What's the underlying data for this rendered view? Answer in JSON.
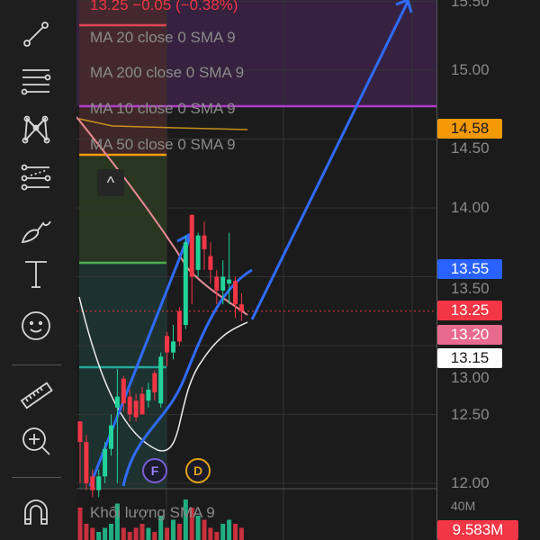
{
  "toolbar": {
    "items": [
      {
        "icon": "trend-line-icon"
      },
      {
        "icon": "horizontal-lines-icon"
      },
      {
        "icon": "pattern-icon"
      },
      {
        "icon": "fib-channel-icon"
      },
      {
        "icon": "brush-icon"
      },
      {
        "icon": "text-icon"
      },
      {
        "icon": "emoji-icon"
      },
      {
        "icon": "ruler-icon"
      },
      {
        "icon": "zoom-in-icon"
      },
      {
        "icon": "magnet-icon"
      }
    ]
  },
  "header": {
    "price_change": "13.25  −0.05 (−0.38%)"
  },
  "indicators": [
    "MA 20 close 0 SMA 9",
    "MA 200 close 0 SMA 9",
    "MA 10 close 0 SMA 9",
    "MA 50 close 0 SMA 9"
  ],
  "volume_label": "Khối lượng SMA 9",
  "collapse_label": "^",
  "markers": [
    {
      "label": "F",
      "color": "#7a5cd6"
    },
    {
      "label": "D",
      "color": "#e2a316"
    }
  ],
  "axis": {
    "ticks": [
      {
        "label": "15.50",
        "value": 15.5
      },
      {
        "label": "15.00",
        "value": 15.0
      },
      {
        "label": "14.50",
        "value": 14.5
      },
      {
        "label": "14.00",
        "value": 14.0
      },
      {
        "label": "13.50",
        "value": 13.5
      },
      {
        "label": "13.00",
        "value": 13.0
      },
      {
        "label": "12.50",
        "value": 12.5
      },
      {
        "label": "12.00",
        "value": 12.0
      }
    ],
    "volume_tick": "40M",
    "badges": [
      {
        "label": "14.58",
        "value": 14.58,
        "bg": "#f59a07",
        "fg": "#1a1a1a"
      },
      {
        "label": "13.55",
        "value": 13.55,
        "bg": "#2962ff",
        "fg": "#ffffff"
      },
      {
        "label": "13.25",
        "value": 13.25,
        "bg": "#f23645",
        "fg": "#ffffff"
      },
      {
        "label": "13.20",
        "value": 13.2,
        "bg": "#e86a8f",
        "fg": "#ffffff"
      },
      {
        "label": "13.15",
        "value": 13.15,
        "bg": "#ffffff",
        "fg": "#1a1a1a"
      }
    ],
    "volume_badge": {
      "label": "9.583M",
      "bg": "#f23645",
      "fg": "#ffffff"
    }
  },
  "colors": {
    "up": "#22d39a",
    "down": "#f23645",
    "drawing": "#2f6bff"
  },
  "chart_data": {
    "type": "candlestick",
    "ylim": [
      12.0,
      15.5
    ],
    "candles": [
      [
        12.45,
        12.45,
        12.0,
        12.3
      ],
      [
        12.3,
        12.35,
        11.95,
        12.0
      ],
      [
        12.05,
        12.1,
        11.9,
        11.95
      ],
      [
        11.95,
        12.1,
        11.9,
        12.05
      ],
      [
        12.05,
        12.3,
        12.0,
        12.25
      ],
      [
        12.25,
        12.5,
        12.2,
        12.42
      ],
      [
        12.55,
        12.83,
        12.0,
        12.63
      ],
      [
        12.76,
        12.78,
        12.52,
        12.58
      ],
      [
        12.63,
        12.68,
        12.45,
        12.5
      ],
      [
        12.6,
        12.65,
        12.45,
        12.48
      ],
      [
        12.65,
        12.7,
        12.5,
        12.5
      ],
      [
        12.6,
        12.73,
        12.55,
        12.68
      ],
      [
        12.8,
        12.82,
        12.6,
        12.66
      ],
      [
        12.58,
        12.95,
        12.55,
        12.92
      ],
      [
        13.07,
        13.1,
        12.85,
        12.95
      ],
      [
        12.95,
        13.15,
        12.9,
        13.03
      ],
      [
        13.25,
        13.28,
        13.0,
        13.03
      ],
      [
        13.15,
        13.8,
        13.12,
        13.75
      ],
      [
        13.95,
        13.95,
        13.3,
        13.5
      ],
      [
        13.55,
        13.82,
        13.5,
        13.8
      ],
      [
        13.8,
        13.9,
        13.55,
        13.7
      ],
      [
        13.65,
        13.75,
        13.45,
        13.55
      ],
      [
        13.5,
        13.55,
        13.3,
        13.4
      ],
      [
        13.4,
        13.62,
        13.3,
        13.5
      ],
      [
        13.45,
        13.82,
        13.3,
        13.48
      ],
      [
        13.47,
        13.5,
        13.2,
        13.3
      ],
      [
        13.3,
        13.38,
        13.18,
        13.25
      ]
    ],
    "volume_up_down": [
      0,
      0,
      0,
      1,
      1,
      1,
      1,
      0,
      0,
      0,
      0,
      1,
      0,
      1,
      0,
      1,
      0,
      1,
      0,
      1,
      0,
      0,
      0,
      1,
      1,
      0,
      0
    ],
    "volume": [
      0.8,
      0.4,
      0.3,
      0.2,
      0.3,
      0.4,
      0.9,
      0.3,
      0.2,
      0.3,
      0.4,
      0.3,
      0.2,
      0.6,
      0.3,
      0.5,
      0.4,
      1.0,
      0.8,
      0.6,
      0.5,
      0.3,
      0.2,
      0.4,
      0.5,
      0.4,
      0.3
    ]
  }
}
